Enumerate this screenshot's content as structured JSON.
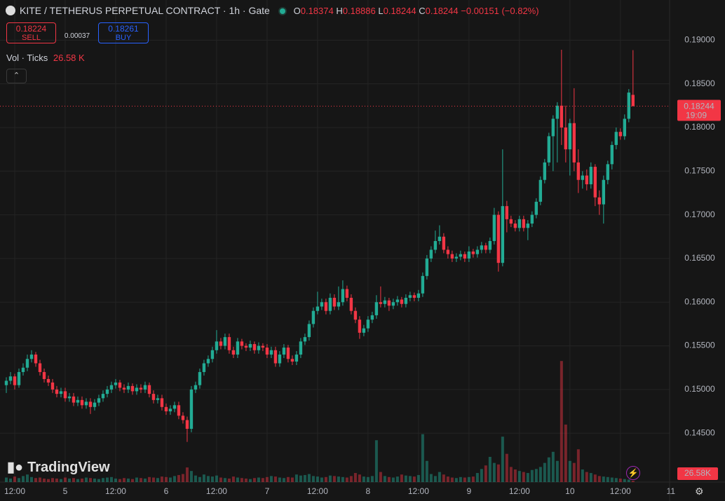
{
  "chart_data": {
    "type": "candlestick",
    "header": {
      "symbol": "KITE / TETHERUS PERPETUAL CONTRACT · 1h · Gate",
      "o": "O",
      "h": "H",
      "l": "L",
      "c": "C",
      "change": "−0.00151 (−0.82%)",
      "sell": {
        "price": 0.18224,
        "label": "SELL"
      },
      "spread": 0.00037,
      "buy": {
        "price": 0.18261,
        "label": "BUY"
      },
      "indicator": "Vol · Ticks"
    },
    "countdown": "19:09",
    "watermark": "TradingView",
    "up_color": "#22ab94",
    "down_color": "#f23645",
    "grid": true,
    "ylim": [
      0.1394,
      0.1946
    ],
    "yticks": [
      {
        "value": 0.145,
        "label": "0.14500"
      },
      {
        "value": 0.15,
        "label": "0.15000"
      },
      {
        "value": 0.155,
        "label": "0.15500"
      },
      {
        "value": 0.16,
        "label": "0.16000"
      },
      {
        "value": 0.165,
        "label": "0.16500"
      },
      {
        "value": 0.17,
        "label": "0.17000"
      },
      {
        "value": 0.175,
        "label": "0.17500"
      },
      {
        "value": 0.18,
        "label": "0.18000"
      },
      {
        "value": 0.185,
        "label": "0.18500"
      },
      {
        "value": 0.19,
        "label": "0.19000"
      }
    ],
    "xlim": [
      -1.5,
      157.7
    ],
    "xticks": [
      {
        "value": 2,
        "label": "12:00"
      },
      {
        "value": 14,
        "label": "5"
      },
      {
        "value": 26,
        "label": "12:00"
      },
      {
        "value": 38,
        "label": "6"
      },
      {
        "value": 50,
        "label": "12:00"
      },
      {
        "value": 62,
        "label": "7"
      },
      {
        "value": 74,
        "label": "12:00"
      },
      {
        "value": 86,
        "label": "8"
      },
      {
        "value": 98,
        "label": "12:00"
      },
      {
        "value": 110,
        "label": "9"
      },
      {
        "value": 122,
        "label": "12:00"
      },
      {
        "value": 134,
        "label": "10"
      },
      {
        "value": 146,
        "label": "12:00"
      },
      {
        "value": 158,
        "label": "11"
      }
    ],
    "ohlc": [
      [
        0.1505,
        0.1514,
        0.1496,
        0.151
      ],
      [
        0.151,
        0.152,
        0.1506,
        0.1515
      ],
      [
        0.1515,
        0.1518,
        0.15,
        0.1505
      ],
      [
        0.1505,
        0.1524,
        0.1502,
        0.152
      ],
      [
        0.152,
        0.153,
        0.1516,
        0.1525
      ],
      [
        0.1525,
        0.154,
        0.1521,
        0.1535
      ],
      [
        0.1535,
        0.1545,
        0.1531,
        0.154
      ],
      [
        0.154,
        0.1543,
        0.1526,
        0.153
      ],
      [
        0.153,
        0.1534,
        0.1516,
        0.152
      ],
      [
        0.152,
        0.1524,
        0.1508,
        0.1512
      ],
      [
        0.1512,
        0.1516,
        0.1504,
        0.1508
      ],
      [
        0.1508,
        0.1512,
        0.1496,
        0.15
      ],
      [
        0.15,
        0.1504,
        0.1491,
        0.1495
      ],
      [
        0.1495,
        0.1502,
        0.1491,
        0.1498
      ],
      [
        0.1498,
        0.1502,
        0.1486,
        0.149
      ],
      [
        0.149,
        0.1496,
        0.1486,
        0.1492
      ],
      [
        0.1492,
        0.1496,
        0.1481,
        0.1485
      ],
      [
        0.1485,
        0.1492,
        0.1481,
        0.1488
      ],
      [
        0.1488,
        0.1492,
        0.1478,
        0.1482
      ],
      [
        0.1482,
        0.149,
        0.1478,
        0.1486
      ],
      [
        0.1486,
        0.149,
        0.1472,
        0.148
      ],
      [
        0.148,
        0.1489,
        0.1476,
        0.1485
      ],
      [
        0.1485,
        0.1494,
        0.1481,
        0.149
      ],
      [
        0.149,
        0.1499,
        0.1486,
        0.1495
      ],
      [
        0.1495,
        0.1504,
        0.1491,
        0.15
      ],
      [
        0.15,
        0.1509,
        0.1496,
        0.1505
      ],
      [
        0.1505,
        0.1512,
        0.1501,
        0.1508
      ],
      [
        0.1508,
        0.1511,
        0.1498,
        0.1502
      ],
      [
        0.1502,
        0.1506,
        0.1496,
        0.15
      ],
      [
        0.15,
        0.1508,
        0.1496,
        0.1504
      ],
      [
        0.1504,
        0.1507,
        0.1494,
        0.1498
      ],
      [
        0.1498,
        0.1506,
        0.1494,
        0.1502
      ],
      [
        0.1502,
        0.1506,
        0.1496,
        0.15
      ],
      [
        0.15,
        0.1509,
        0.1496,
        0.1505
      ],
      [
        0.1505,
        0.1508,
        0.1491,
        0.1495
      ],
      [
        0.1495,
        0.1499,
        0.1484,
        0.1488
      ],
      [
        0.1488,
        0.1494,
        0.1484,
        0.149
      ],
      [
        0.149,
        0.1494,
        0.1476,
        0.148
      ],
      [
        0.148,
        0.1484,
        0.1471,
        0.1475
      ],
      [
        0.1475,
        0.1482,
        0.1471,
        0.1478
      ],
      [
        0.1478,
        0.1486,
        0.1474,
        0.1482
      ],
      [
        0.1482,
        0.1486,
        0.1466,
        0.147
      ],
      [
        0.147,
        0.1474,
        0.1461,
        0.1465
      ],
      [
        0.1465,
        0.1469,
        0.144,
        0.1455
      ],
      [
        0.1455,
        0.1504,
        0.1451,
        0.15
      ],
      [
        0.15,
        0.1509,
        0.1496,
        0.1505
      ],
      [
        0.1505,
        0.1524,
        0.1501,
        0.152
      ],
      [
        0.152,
        0.1534,
        0.1516,
        0.153
      ],
      [
        0.153,
        0.1539,
        0.1526,
        0.1535
      ],
      [
        0.1535,
        0.1549,
        0.1531,
        0.1545
      ],
      [
        0.1545,
        0.1568,
        0.1541,
        0.1555
      ],
      [
        0.1555,
        0.1559,
        0.1546,
        0.155
      ],
      [
        0.155,
        0.1564,
        0.1546,
        0.156
      ],
      [
        0.156,
        0.1564,
        0.1541,
        0.1545
      ],
      [
        0.1545,
        0.1549,
        0.1536,
        0.154
      ],
      [
        0.154,
        0.1559,
        0.1536,
        0.1555
      ],
      [
        0.1555,
        0.1558,
        0.1546,
        0.155
      ],
      [
        0.155,
        0.1553,
        0.1544,
        0.1548
      ],
      [
        0.1548,
        0.1556,
        0.1544,
        0.1552
      ],
      [
        0.1552,
        0.1555,
        0.1541,
        0.1545
      ],
      [
        0.1545,
        0.1554,
        0.1541,
        0.155
      ],
      [
        0.155,
        0.1553,
        0.1544,
        0.1548
      ],
      [
        0.1548,
        0.1552,
        0.1536,
        0.154
      ],
      [
        0.154,
        0.1549,
        0.1536,
        0.1545
      ],
      [
        0.1545,
        0.1549,
        0.1526,
        0.153
      ],
      [
        0.153,
        0.1544,
        0.1526,
        0.154
      ],
      [
        0.154,
        0.1552,
        0.1536,
        0.1548
      ],
      [
        0.1548,
        0.1551,
        0.1531,
        0.1535
      ],
      [
        0.1535,
        0.1539,
        0.1528,
        0.1532
      ],
      [
        0.1532,
        0.1544,
        0.1528,
        0.154
      ],
      [
        0.154,
        0.1559,
        0.1536,
        0.1555
      ],
      [
        0.1555,
        0.1564,
        0.1551,
        0.156
      ],
      [
        0.156,
        0.1579,
        0.1556,
        0.1575
      ],
      [
        0.1575,
        0.1594,
        0.1571,
        0.159
      ],
      [
        0.159,
        0.1612,
        0.1586,
        0.1595
      ],
      [
        0.1595,
        0.1604,
        0.1591,
        0.16
      ],
      [
        0.16,
        0.1604,
        0.1586,
        0.159
      ],
      [
        0.159,
        0.161,
        0.1586,
        0.1605
      ],
      [
        0.1605,
        0.1609,
        0.1591,
        0.1595
      ],
      [
        0.1595,
        0.1618,
        0.1591,
        0.16
      ],
      [
        0.16,
        0.1625,
        0.1596,
        0.1615
      ],
      [
        0.1615,
        0.1619,
        0.1601,
        0.1605
      ],
      [
        0.1605,
        0.1609,
        0.1586,
        0.159
      ],
      [
        0.159,
        0.1594,
        0.1576,
        0.158
      ],
      [
        0.158,
        0.1584,
        0.1558,
        0.1565
      ],
      [
        0.1565,
        0.1574,
        0.1561,
        0.157
      ],
      [
        0.157,
        0.1584,
        0.1566,
        0.158
      ],
      [
        0.158,
        0.1589,
        0.1576,
        0.1585
      ],
      [
        0.1585,
        0.1608,
        0.1581,
        0.16
      ],
      [
        0.16,
        0.1618,
        0.1594,
        0.1598
      ],
      [
        0.1598,
        0.1606,
        0.1594,
        0.1602
      ],
      [
        0.1602,
        0.1605,
        0.159,
        0.1596
      ],
      [
        0.1596,
        0.1604,
        0.1592,
        0.16
      ],
      [
        0.16,
        0.1607,
        0.1596,
        0.1603
      ],
      [
        0.1603,
        0.1606,
        0.1594,
        0.1598
      ],
      [
        0.1598,
        0.1609,
        0.1594,
        0.1605
      ],
      [
        0.1605,
        0.1612,
        0.1601,
        0.1608
      ],
      [
        0.1608,
        0.1611,
        0.1601,
        0.1605
      ],
      [
        0.1605,
        0.1614,
        0.1601,
        0.161
      ],
      [
        0.161,
        0.1634,
        0.1606,
        0.163
      ],
      [
        0.163,
        0.1654,
        0.1626,
        0.165
      ],
      [
        0.165,
        0.1664,
        0.1646,
        0.166
      ],
      [
        0.166,
        0.1682,
        0.1656,
        0.167
      ],
      [
        0.167,
        0.1688,
        0.1666,
        0.1675
      ],
      [
        0.1675,
        0.1679,
        0.1656,
        0.166
      ],
      [
        0.166,
        0.1664,
        0.165,
        0.1655
      ],
      [
        0.1655,
        0.1659,
        0.1646,
        0.165
      ],
      [
        0.165,
        0.1656,
        0.1646,
        0.1652
      ],
      [
        0.1652,
        0.1659,
        0.1648,
        0.1655
      ],
      [
        0.1655,
        0.1658,
        0.1646,
        0.165
      ],
      [
        0.165,
        0.1664,
        0.1646,
        0.1658
      ],
      [
        0.1658,
        0.1661,
        0.1651,
        0.1655
      ],
      [
        0.1655,
        0.1664,
        0.1651,
        0.166
      ],
      [
        0.166,
        0.1669,
        0.1656,
        0.1665
      ],
      [
        0.1665,
        0.1668,
        0.1656,
        0.166
      ],
      [
        0.166,
        0.1674,
        0.1656,
        0.167
      ],
      [
        0.167,
        0.1708,
        0.1666,
        0.17
      ],
      [
        0.17,
        0.1704,
        0.1635,
        0.1645
      ],
      [
        0.1645,
        0.1775,
        0.1641,
        0.171
      ],
      [
        0.171,
        0.1716,
        0.168,
        0.1695
      ],
      [
        0.1695,
        0.1699,
        0.1686,
        0.169
      ],
      [
        0.169,
        0.1694,
        0.1681,
        0.1685
      ],
      [
        0.1685,
        0.1699,
        0.1681,
        0.1695
      ],
      [
        0.1695,
        0.1699,
        0.1681,
        0.1685
      ],
      [
        0.1685,
        0.1694,
        0.1671,
        0.169
      ],
      [
        0.169,
        0.1704,
        0.1686,
        0.17
      ],
      [
        0.17,
        0.1719,
        0.1696,
        0.1715
      ],
      [
        0.1715,
        0.1744,
        0.1711,
        0.174
      ],
      [
        0.174,
        0.1764,
        0.1736,
        0.176
      ],
      [
        0.176,
        0.1794,
        0.1756,
        0.179
      ],
      [
        0.179,
        0.1814,
        0.175,
        0.181
      ],
      [
        0.181,
        0.1829,
        0.176,
        0.1825
      ],
      [
        0.1825,
        0.1889,
        0.178,
        0.18
      ],
      [
        0.18,
        0.1825,
        0.176,
        0.1775
      ],
      [
        0.1775,
        0.181,
        0.1745,
        0.1805
      ],
      [
        0.1805,
        0.1845,
        0.175,
        0.176
      ],
      [
        0.176,
        0.1775,
        0.1725,
        0.174
      ],
      [
        0.174,
        0.175,
        0.173,
        0.1745
      ],
      [
        0.1745,
        0.1752,
        0.1728,
        0.1735
      ],
      [
        0.1735,
        0.176,
        0.173,
        0.1755
      ],
      [
        0.1755,
        0.1758,
        0.171,
        0.172
      ],
      [
        0.172,
        0.1728,
        0.17,
        0.1712
      ],
      [
        0.1712,
        0.1745,
        0.169,
        0.174
      ],
      [
        0.174,
        0.1762,
        0.1735,
        0.1758
      ],
      [
        0.1758,
        0.1784,
        0.1752,
        0.178
      ],
      [
        0.178,
        0.18,
        0.1775,
        0.1795
      ],
      [
        0.1795,
        0.1799,
        0.1786,
        0.179
      ],
      [
        0.179,
        0.1815,
        0.1786,
        0.181
      ],
      [
        0.181,
        0.1844,
        0.1806,
        0.184
      ],
      [
        0.18374,
        0.18886,
        0.18244,
        0.18244
      ]
    ],
    "volume": {
      "lim": [
        0,
        2500
      ],
      "header_label": "26.58 K",
      "axis_label": "26.58K",
      "values": [
        90,
        70,
        110,
        80,
        120,
        150,
        100,
        80,
        90,
        70,
        60,
        80,
        70,
        60,
        90,
        70,
        80,
        60,
        70,
        90,
        80,
        70,
        60,
        80,
        90,
        100,
        70,
        60,
        80,
        70,
        60,
        90,
        80,
        70,
        100,
        90,
        80,
        110,
        100,
        90,
        120,
        140,
        160,
        290,
        220,
        130,
        100,
        150,
        120,
        110,
        130,
        90,
        80,
        70,
        110,
        90,
        80,
        70,
        60,
        80,
        90,
        80,
        100,
        120,
        110,
        90,
        80,
        100,
        90,
        150,
        130,
        140,
        160,
        120,
        110,
        90,
        100,
        130,
        120,
        110,
        100,
        90,
        120,
        180,
        150,
        110,
        100,
        120,
        830,
        200,
        120,
        100,
        90,
        110,
        150,
        130,
        120,
        110,
        140,
        950,
        420,
        160,
        120,
        200,
        150,
        110,
        90,
        80,
        100,
        90,
        100,
        110,
        180,
        260,
        330,
        500,
        380,
        350,
        900,
        560,
        300,
        250,
        220,
        200,
        180,
        240,
        260,
        300,
        380,
        490,
        600,
        420,
        2400,
        1140,
        420,
        380,
        650,
        250,
        200,
        180,
        150,
        120,
        110,
        100,
        90,
        80,
        70,
        60,
        50,
        26.58
      ]
    }
  }
}
